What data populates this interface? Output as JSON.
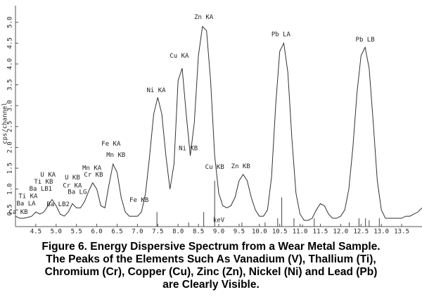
{
  "chart_data": {
    "type": "line",
    "y_label": "cps/channel",
    "x_label": "keV",
    "x": [
      4.0,
      4.1,
      4.2,
      4.3,
      4.4,
      4.5,
      4.6,
      4.7,
      4.8,
      4.9,
      5.0,
      5.1,
      5.2,
      5.3,
      5.4,
      5.5,
      5.6,
      5.7,
      5.8,
      5.9,
      6.0,
      6.1,
      6.2,
      6.3,
      6.4,
      6.5,
      6.6,
      6.7,
      6.8,
      6.9,
      7.0,
      7.1,
      7.2,
      7.3,
      7.4,
      7.5,
      7.6,
      7.7,
      7.8,
      7.9,
      8.0,
      8.1,
      8.2,
      8.3,
      8.4,
      8.5,
      8.6,
      8.7,
      8.8,
      8.9,
      9.0,
      9.1,
      9.2,
      9.3,
      9.4,
      9.5,
      9.6,
      9.7,
      9.8,
      9.9,
      10.0,
      10.1,
      10.2,
      10.3,
      10.4,
      10.5,
      10.6,
      10.7,
      10.8,
      10.9,
      11.0,
      11.1,
      11.2,
      11.3,
      11.4,
      11.5,
      11.6,
      11.7,
      11.8,
      11.9,
      12.0,
      12.1,
      12.2,
      12.3,
      12.4,
      12.5,
      12.6,
      12.7,
      12.8,
      12.9,
      13.0,
      13.1,
      13.2,
      13.3,
      13.4,
      13.5,
      13.6,
      13.7,
      13.8,
      13.9,
      14.0
    ],
    "values": [
      0.35,
      0.3,
      0.3,
      0.32,
      0.35,
      0.45,
      0.4,
      0.45,
      0.6,
      0.75,
      0.6,
      0.4,
      0.35,
      0.45,
      0.65,
      0.55,
      0.55,
      0.7,
      0.95,
      1.15,
      1.0,
      0.6,
      0.55,
      1.1,
      1.6,
      1.4,
      0.8,
      0.45,
      0.35,
      0.35,
      0.35,
      0.45,
      0.9,
      1.8,
      2.8,
      3.2,
      2.8,
      1.8,
      1.0,
      1.6,
      3.6,
      3.9,
      2.8,
      1.8,
      2.6,
      4.2,
      4.9,
      4.8,
      3.6,
      1.8,
      0.9,
      0.6,
      0.55,
      0.6,
      0.8,
      1.2,
      1.35,
      1.2,
      0.8,
      0.5,
      0.35,
      0.35,
      0.5,
      1.3,
      3.0,
      4.3,
      4.5,
      3.8,
      2.2,
      0.9,
      0.4,
      0.25,
      0.25,
      0.3,
      0.5,
      0.65,
      0.6,
      0.4,
      0.3,
      0.3,
      0.35,
      0.5,
      1.0,
      2.0,
      3.3,
      4.2,
      4.4,
      3.9,
      2.6,
      1.2,
      0.5,
      0.3,
      0.3,
      0.3,
      0.3,
      0.3,
      0.35,
      0.35,
      0.4,
      0.45,
      0.55
    ],
    "color": "#333333",
    "lines": {
      "x": [
        7.48,
        8.26,
        8.63,
        8.9,
        9.57,
        10.14,
        10.45,
        10.55,
        10.85,
        11.06,
        11.35,
        12.21,
        12.45,
        12.61,
        12.7,
        12.95
      ],
      "values": [
        0.45,
        0.2,
        0.45,
        1.2,
        0.2,
        0.2,
        0.3,
        0.8,
        0.3,
        0.15,
        0.3,
        0.2,
        0.3,
        0.3,
        0.25,
        0.3
      ]
    },
    "annotations": [
      {
        "text": "Ca KB",
        "x": 4.07,
        "y": 0.45
      },
      {
        "text": "Ba LA",
        "x": 4.26,
        "y": 0.65
      },
      {
        "text": "Ti KA",
        "x": 4.31,
        "y": 0.83
      },
      {
        "text": "Ba LB1",
        "x": 4.62,
        "y": 1.0
      },
      {
        "text": "Ti KB",
        "x": 4.69,
        "y": 1.17
      },
      {
        "text": "U KA",
        "x": 4.8,
        "y": 1.34
      },
      {
        "text": "Ba LB2",
        "x": 5.05,
        "y": 0.63
      },
      {
        "text": "Cr KA",
        "x": 5.4,
        "y": 1.08
      },
      {
        "text": "U KB",
        "x": 5.4,
        "y": 1.27
      },
      {
        "text": "Ba LG",
        "x": 5.52,
        "y": 0.93
      },
      {
        "text": "Mn KA",
        "x": 5.88,
        "y": 1.5
      },
      {
        "text": "Cr KB",
        "x": 5.92,
        "y": 1.34
      },
      {
        "text": "Fe KA",
        "x": 6.35,
        "y": 2.08
      },
      {
        "text": "Mn KB",
        "x": 6.47,
        "y": 1.81
      },
      {
        "text": "Fe KB",
        "x": 7.04,
        "y": 0.73
      },
      {
        "text": "Ni KA",
        "x": 7.46,
        "y": 3.37
      },
      {
        "text": "Cu KA",
        "x": 8.03,
        "y": 4.19
      },
      {
        "text": "Ni KB",
        "x": 8.25,
        "y": 1.97
      },
      {
        "text": "Zn KA",
        "x": 8.63,
        "y": 5.12
      },
      {
        "text": "Cu KB",
        "x": 8.9,
        "y": 1.53
      },
      {
        "text": "Zn KB",
        "x": 9.54,
        "y": 1.54
      },
      {
        "text": "Pb LA",
        "x": 10.53,
        "y": 4.71
      },
      {
        "text": "Pb LB",
        "x": 12.6,
        "y": 4.58
      }
    ],
    "xlim": [
      4.0,
      14.0
    ],
    "xticks": [
      4.5,
      {
        "value": 5,
        "label": "5.0"
      },
      5.5,
      {
        "value": 6,
        "label": "6.0"
      },
      6.5,
      {
        "value": 7,
        "label": "7.0"
      },
      7.5,
      {
        "value": 8,
        "label": "8.0"
      },
      8.5,
      {
        "value": 9,
        "label": "9.0"
      },
      9.5,
      {
        "value": 10,
        "label": "10.0"
      },
      10.5,
      {
        "value": 11,
        "label": "11.0"
      },
      11.5,
      {
        "value": 12,
        "label": "12.0"
      },
      12.5,
      {
        "value": 13,
        "label": "13.0"
      },
      13.5
    ],
    "ylim": [
      0.1,
      5.4
    ],
    "yticks": [
      0.5,
      {
        "value": 1,
        "label": "1.0"
      },
      1.5,
      {
        "value": 2,
        "label": "2.0"
      },
      2.5,
      {
        "value": 3,
        "label": "3.0"
      },
      3.5,
      {
        "value": 4,
        "label": "4.0"
      },
      4.5,
      {
        "value": 5,
        "label": "5.0"
      }
    ],
    "caption": [
      "Figure 6. Energy Dispersive Spectrum from a Wear Metal Sample.",
      "The Peaks of the Elements Such As Vanadium (V), Thallium (Ti),",
      "Chromium (Cr), Copper (Cu), Zinc (Zn), Nickel (Ni) and Lead (Pb)",
      "are Clearly Visible."
    ]
  }
}
